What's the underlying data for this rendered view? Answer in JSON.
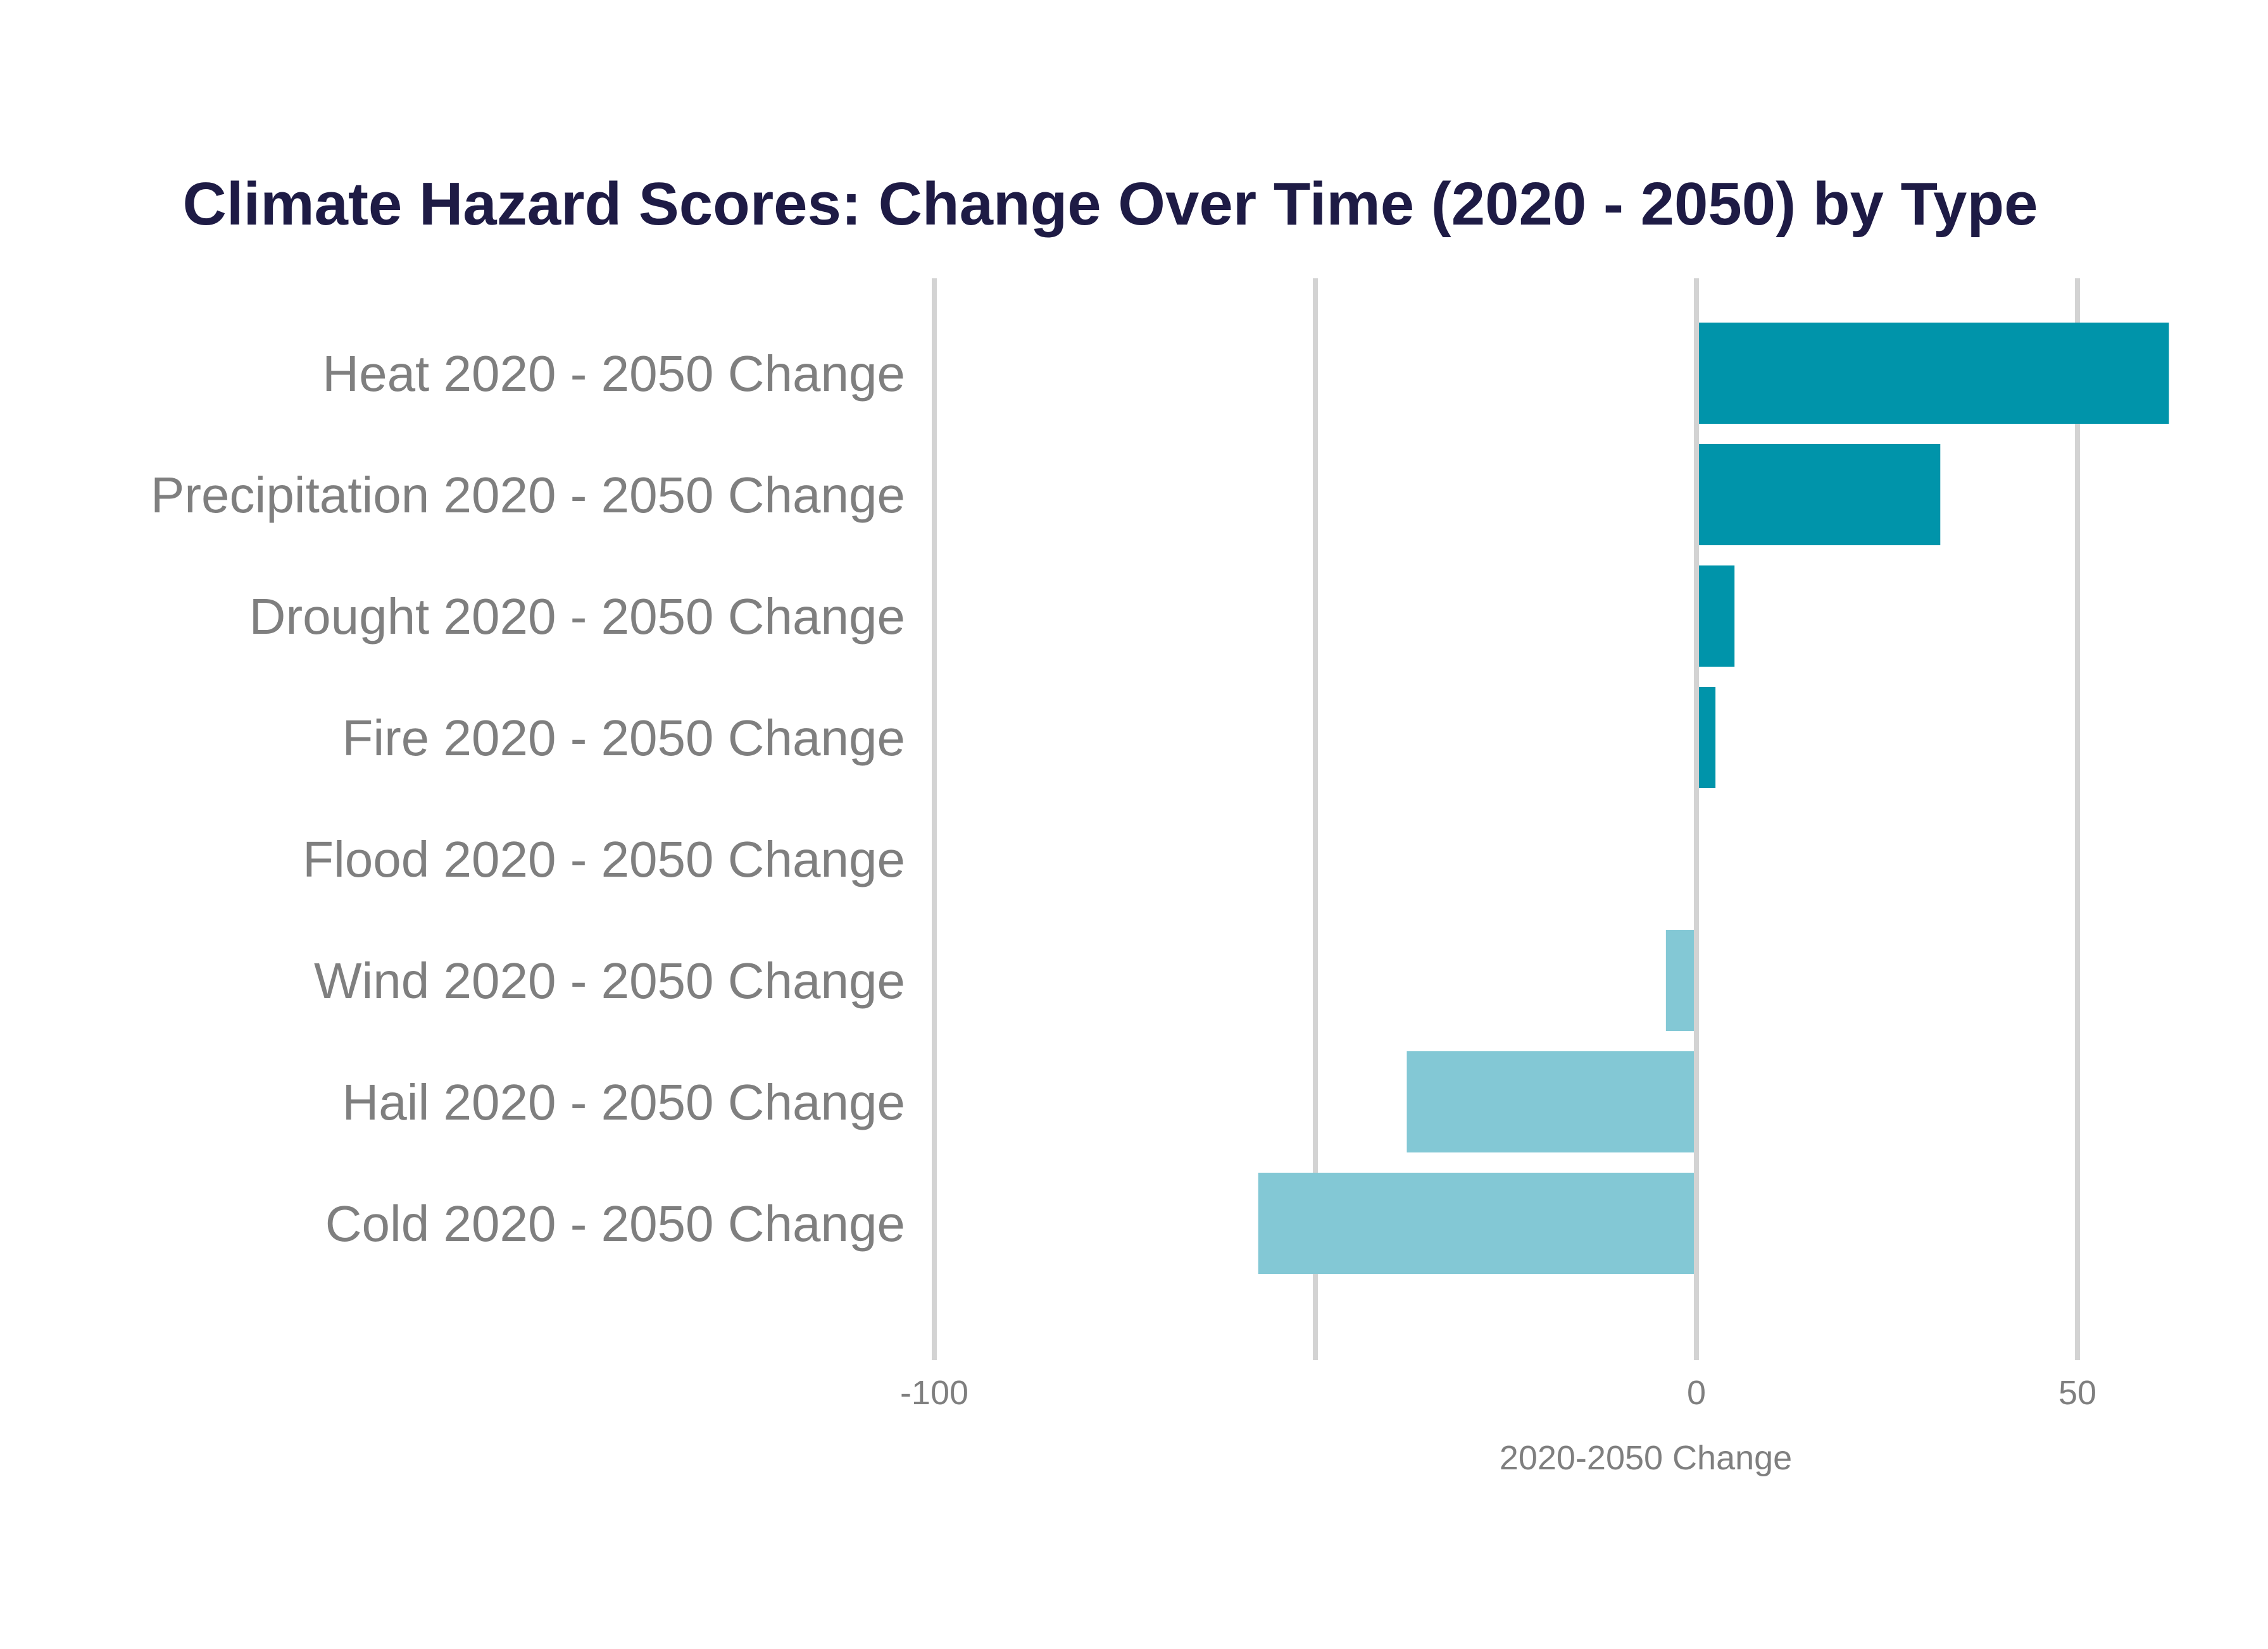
{
  "chart_data": {
    "type": "bar",
    "orientation": "horizontal",
    "title": "Climate Hazard Scores: Change Over Time (2020 - 2050) by Type",
    "xlabel": "2020-2050 Change",
    "ylabel": "",
    "categories": [
      "Heat 2020 - 2050 Change",
      "Precipitation 2020 - 2050 Change",
      "Drought 2020 - 2050 Change",
      "Fire 2020 - 2050 Change",
      "Flood 2020 - 2050 Change",
      "Wind 2020 - 2050 Change",
      "Hail 2020 - 2050 Change",
      "Cold 2020 - 2050 Change"
    ],
    "values": [
      62,
      32,
      5,
      2.5,
      0,
      -4,
      -38,
      -57.5
    ],
    "xlim": [
      -100,
      62
    ],
    "xticks": [
      -100,
      0,
      50
    ],
    "xtick_labels": [
      "-100",
      "0",
      "50"
    ],
    "gridlines_x": [
      -100,
      -50,
      0,
      50
    ],
    "grid": true,
    "legend": "none",
    "colors": {
      "positive": "#0094aa",
      "negative": "#83c8d5",
      "title": "#1e1b45",
      "label": "#7f7f7f",
      "grid": "#d3d3d3"
    }
  }
}
